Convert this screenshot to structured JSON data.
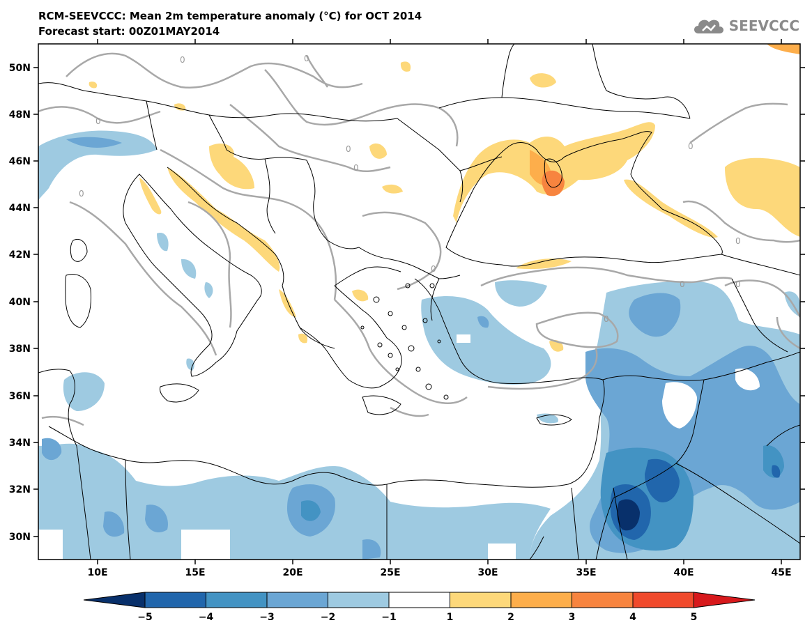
{
  "header": {
    "title_line1": "RCM-SEEVCCC: Mean 2m temperature anomaly (°C) for OCT 2014",
    "title_line2": "Forecast start: 00Z01MAY2014"
  },
  "logo": {
    "text": "SEEVCCC",
    "icon": "cloud-icon",
    "color": "#8a8a8a"
  },
  "map": {
    "lat_ticks": [
      "50N",
      "48N",
      "46N",
      "44N",
      "42N",
      "40N",
      "38N",
      "36N",
      "34N",
      "32N",
      "30N"
    ],
    "lon_ticks": [
      "10E",
      "15E",
      "20E",
      "25E",
      "30E",
      "35E",
      "40E",
      "45E"
    ],
    "contour_label": "0",
    "sea_color": "#ffffff",
    "border_color": "#000000"
  },
  "colorbar": {
    "levels": [
      "−5",
      "−4",
      "−3",
      "−2",
      "−1",
      "1",
      "2",
      "3",
      "4",
      "5"
    ],
    "colors": [
      "#08306b",
      "#2166ac",
      "#4393c3",
      "#6ba6d4",
      "#9ecae1",
      "#ffffff",
      "#fdd87a",
      "#fdae4b",
      "#f7843f",
      "#f04a2c",
      "#d7191c"
    ]
  }
}
